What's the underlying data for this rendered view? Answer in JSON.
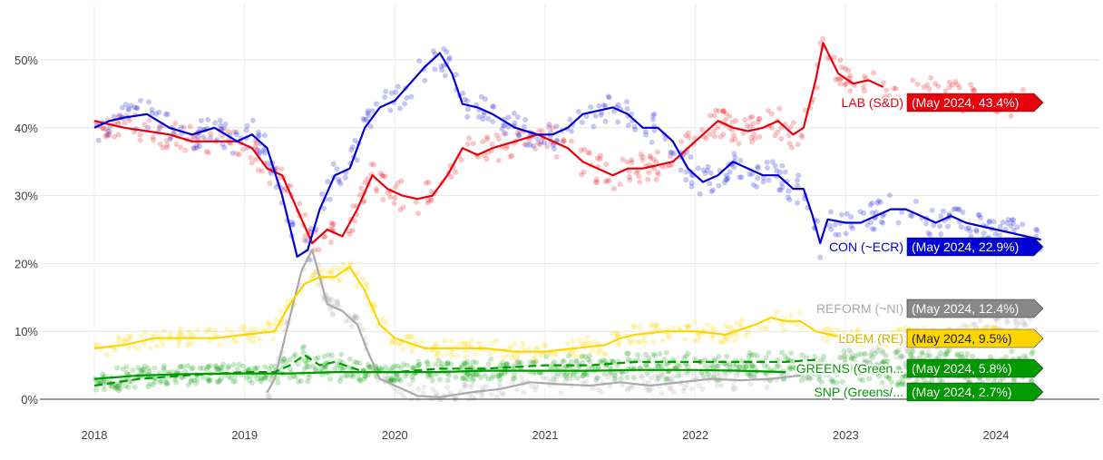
{
  "chart_data": {
    "type": "line",
    "title": "",
    "xlabel": "",
    "ylabel": "",
    "x_ticks": [
      "2018",
      "2019",
      "2020",
      "2021",
      "2022",
      "2023",
      "2024"
    ],
    "y_ticks": [
      "0%",
      "10%",
      "20%",
      "30%",
      "40%",
      "50%"
    ],
    "xlim": [
      2017.95,
      2024.7
    ],
    "ylim": [
      0,
      58
    ],
    "grid": true,
    "legend": "inline labels at right end of lines",
    "series": [
      {
        "name": "LAB (S&D)",
        "tag": "(May 2024, 43.4%)",
        "color": "#e8000b",
        "dashed": false,
        "points": [
          [
            2018.0,
            41
          ],
          [
            2018.1,
            40.5
          ],
          [
            2018.2,
            40
          ],
          [
            2018.35,
            39.5
          ],
          [
            2018.5,
            39
          ],
          [
            2018.65,
            38
          ],
          [
            2018.8,
            38
          ],
          [
            2018.95,
            38
          ],
          [
            2019.05,
            37
          ],
          [
            2019.15,
            34
          ],
          [
            2019.25,
            33
          ],
          [
            2019.35,
            28
          ],
          [
            2019.45,
            23
          ],
          [
            2019.55,
            25
          ],
          [
            2019.65,
            24
          ],
          [
            2019.75,
            28
          ],
          [
            2019.85,
            33
          ],
          [
            2019.95,
            31
          ],
          [
            2020.05,
            30
          ],
          [
            2020.15,
            29.5
          ],
          [
            2020.25,
            30
          ],
          [
            2020.35,
            33
          ],
          [
            2020.45,
            37
          ],
          [
            2020.55,
            36
          ],
          [
            2020.65,
            37
          ],
          [
            2020.8,
            38
          ],
          [
            2020.95,
            39
          ],
          [
            2021.05,
            38
          ],
          [
            2021.15,
            37
          ],
          [
            2021.25,
            35
          ],
          [
            2021.35,
            34
          ],
          [
            2021.45,
            33
          ],
          [
            2021.55,
            34
          ],
          [
            2021.65,
            34
          ],
          [
            2021.75,
            34.5
          ],
          [
            2021.85,
            35
          ],
          [
            2021.95,
            37
          ],
          [
            2022.05,
            39
          ],
          [
            2022.15,
            41
          ],
          [
            2022.25,
            40
          ],
          [
            2022.35,
            39.5
          ],
          [
            2022.45,
            40
          ],
          [
            2022.55,
            41
          ],
          [
            2022.65,
            39
          ],
          [
            2022.72,
            40
          ],
          [
            2022.8,
            47
          ],
          [
            2022.85,
            52.5
          ],
          [
            2022.95,
            48
          ],
          [
            2023.05,
            46.5
          ],
          [
            2023.15,
            47
          ],
          [
            2023.25,
            46
          ]
        ],
        "tail": [
          2024.25,
          43.4
        ]
      },
      {
        "name": "CON (~ECR)",
        "tag": "(May 2024, 22.9%)",
        "color": "#0000d6",
        "dashed": false,
        "points": [
          [
            2018.0,
            40
          ],
          [
            2018.1,
            41
          ],
          [
            2018.2,
            41.5
          ],
          [
            2018.35,
            42
          ],
          [
            2018.5,
            40
          ],
          [
            2018.65,
            39
          ],
          [
            2018.8,
            40
          ],
          [
            2018.95,
            38
          ],
          [
            2019.05,
            39
          ],
          [
            2019.15,
            37
          ],
          [
            2019.25,
            30
          ],
          [
            2019.35,
            21
          ],
          [
            2019.42,
            22
          ],
          [
            2019.5,
            28
          ],
          [
            2019.6,
            33
          ],
          [
            2019.7,
            34
          ],
          [
            2019.8,
            40
          ],
          [
            2019.9,
            43
          ],
          [
            2020.0,
            44
          ],
          [
            2020.1,
            46.5
          ],
          [
            2020.2,
            49
          ],
          [
            2020.3,
            51
          ],
          [
            2020.38,
            48
          ],
          [
            2020.45,
            43.5
          ],
          [
            2020.55,
            43
          ],
          [
            2020.65,
            42
          ],
          [
            2020.8,
            40
          ],
          [
            2020.95,
            39
          ],
          [
            2021.05,
            39
          ],
          [
            2021.15,
            40
          ],
          [
            2021.25,
            42
          ],
          [
            2021.35,
            42.5
          ],
          [
            2021.45,
            43
          ],
          [
            2021.55,
            42
          ],
          [
            2021.65,
            40
          ],
          [
            2021.75,
            40
          ],
          [
            2021.85,
            38
          ],
          [
            2021.95,
            34
          ],
          [
            2022.05,
            32
          ],
          [
            2022.15,
            33
          ],
          [
            2022.25,
            35
          ],
          [
            2022.35,
            34
          ],
          [
            2022.45,
            33
          ],
          [
            2022.55,
            33
          ],
          [
            2022.65,
            31
          ],
          [
            2022.72,
            31
          ],
          [
            2022.78,
            27
          ],
          [
            2022.83,
            23
          ],
          [
            2022.88,
            26.5
          ],
          [
            2023.0,
            26
          ],
          [
            2023.1,
            26
          ],
          [
            2023.2,
            27
          ],
          [
            2023.3,
            28
          ],
          [
            2023.4,
            28
          ],
          [
            2023.5,
            27
          ],
          [
            2023.6,
            26
          ],
          [
            2023.7,
            27
          ],
          [
            2023.8,
            26
          ],
          [
            2023.9,
            25.5
          ],
          [
            2024.0,
            25
          ],
          [
            2024.1,
            24.5
          ],
          [
            2024.2,
            24
          ],
          [
            2024.3,
            23.5
          ]
        ],
        "tail": [
          2024.3,
          22.9
        ]
      },
      {
        "name": "REFORM (~NI)",
        "tag": "(May 2024, 12.4%)",
        "color": "#aaaaaa",
        "dashed": false,
        "points": [
          [
            2019.15,
            1
          ],
          [
            2019.2,
            3
          ],
          [
            2019.3,
            12
          ],
          [
            2019.38,
            19
          ],
          [
            2019.45,
            22
          ],
          [
            2019.55,
            14
          ],
          [
            2019.65,
            13
          ],
          [
            2019.75,
            11
          ],
          [
            2019.82,
            7
          ],
          [
            2019.9,
            3
          ],
          [
            2020.0,
            2
          ],
          [
            2020.15,
            0.5
          ],
          [
            2020.3,
            0.3
          ],
          [
            2020.5,
            1
          ],
          [
            2020.7,
            1.5
          ],
          [
            2020.9,
            2.5
          ],
          [
            2021.1,
            2.2
          ],
          [
            2021.3,
            2
          ],
          [
            2021.5,
            2.5
          ],
          [
            2021.7,
            2
          ],
          [
            2021.9,
            2.5
          ],
          [
            2022.1,
            3
          ],
          [
            2022.3,
            2.8
          ],
          [
            2022.5,
            3
          ],
          [
            2022.7,
            3.5
          ]
        ],
        "tail": [
          2024.25,
          12.4
        ]
      },
      {
        "name": "LDEM (RE)",
        "tag": "(May 2024, 9.5%)",
        "color": "#ffd500",
        "dashed": false,
        "points": [
          [
            2018.0,
            7.5
          ],
          [
            2018.2,
            8
          ],
          [
            2018.4,
            9
          ],
          [
            2018.6,
            9
          ],
          [
            2018.8,
            9
          ],
          [
            2019.0,
            9.5
          ],
          [
            2019.2,
            10
          ],
          [
            2019.3,
            14
          ],
          [
            2019.4,
            17
          ],
          [
            2019.5,
            18
          ],
          [
            2019.6,
            18
          ],
          [
            2019.7,
            19.5
          ],
          [
            2019.8,
            16
          ],
          [
            2019.9,
            11
          ],
          [
            2020.0,
            9
          ],
          [
            2020.2,
            7.5
          ],
          [
            2020.4,
            7.5
          ],
          [
            2020.6,
            7.5
          ],
          [
            2020.8,
            7
          ],
          [
            2021.0,
            7
          ],
          [
            2021.2,
            7.5
          ],
          [
            2021.4,
            8
          ],
          [
            2021.5,
            9
          ],
          [
            2021.6,
            9.5
          ],
          [
            2021.8,
            10
          ],
          [
            2022.0,
            10
          ],
          [
            2022.2,
            9.5
          ],
          [
            2022.4,
            11
          ],
          [
            2022.5,
            12
          ],
          [
            2022.6,
            11.5
          ],
          [
            2022.7,
            11.5
          ],
          [
            2022.8,
            10
          ],
          [
            2022.9,
            9.5
          ],
          [
            2023.0,
            9
          ]
        ],
        "tail": [
          2024.25,
          9.5
        ]
      },
      {
        "name": "GREENS (Green...",
        "tag": "(May 2024, 5.8%)",
        "color": "#009a00",
        "dashed": true,
        "points": [
          [
            2018.0,
            2
          ],
          [
            2018.3,
            3
          ],
          [
            2018.6,
            3.5
          ],
          [
            2019.0,
            4
          ],
          [
            2019.2,
            4
          ],
          [
            2019.3,
            5
          ],
          [
            2019.4,
            6.5
          ],
          [
            2019.5,
            5
          ],
          [
            2019.6,
            5.5
          ],
          [
            2019.8,
            4
          ],
          [
            2020.0,
            4
          ],
          [
            2020.3,
            4.5
          ],
          [
            2020.6,
            4.5
          ],
          [
            2021.0,
            5
          ],
          [
            2021.3,
            5
          ],
          [
            2021.6,
            5.5
          ],
          [
            2022.0,
            5.5
          ],
          [
            2022.3,
            5.5
          ],
          [
            2022.6,
            5.5
          ],
          [
            2022.8,
            5.8
          ]
        ],
        "tail": [
          2024.25,
          5.8
        ]
      },
      {
        "name": "SNP (Greens/...",
        "tag": "(May 2024, 2.7%)",
        "color": "#009a00",
        "dashed": false,
        "points": [
          [
            2018.0,
            3
          ],
          [
            2018.3,
            3.5
          ],
          [
            2018.6,
            3.7
          ],
          [
            2019.0,
            3.8
          ],
          [
            2019.3,
            3.8
          ],
          [
            2019.6,
            4
          ],
          [
            2020.0,
            4
          ],
          [
            2020.3,
            4
          ],
          [
            2020.6,
            4.2
          ],
          [
            2021.0,
            4.2
          ],
          [
            2021.3,
            4.2
          ],
          [
            2021.6,
            4.3
          ],
          [
            2022.0,
            4.3
          ],
          [
            2022.3,
            4.2
          ],
          [
            2022.6,
            4
          ]
        ],
        "tail": [
          2024.25,
          2.7
        ]
      }
    ]
  }
}
